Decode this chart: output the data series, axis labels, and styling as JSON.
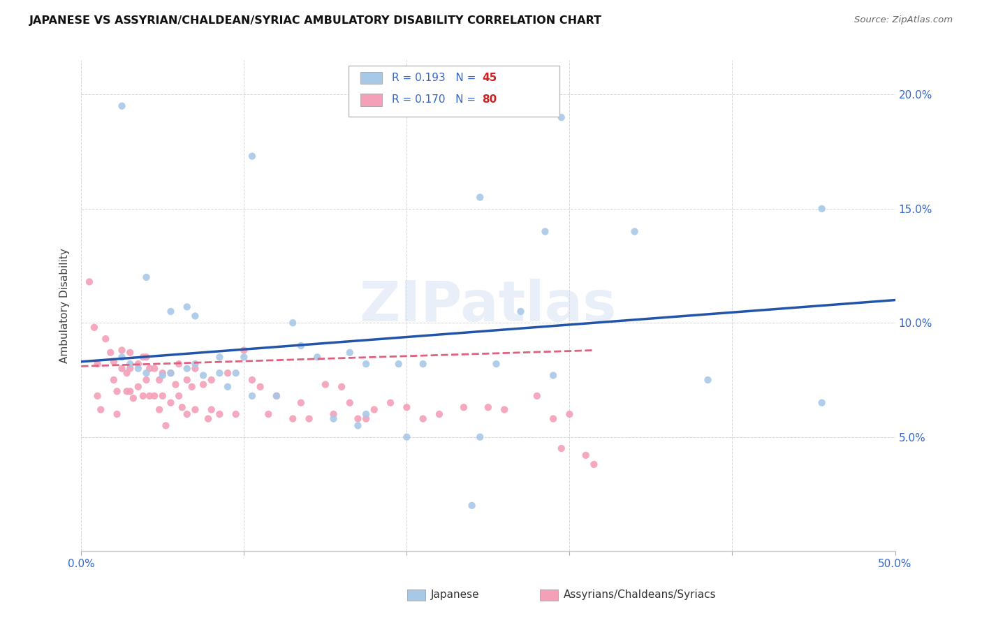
{
  "title": "JAPANESE VS ASSYRIAN/CHALDEAN/SYRIAC AMBULATORY DISABILITY CORRELATION CHART",
  "source": "Source: ZipAtlas.com",
  "ylabel": "Ambulatory Disability",
  "yticks": [
    0.0,
    0.05,
    0.1,
    0.15,
    0.2
  ],
  "ytick_labels": [
    "",
    "5.0%",
    "10.0%",
    "15.0%",
    "20.0%"
  ],
  "xlim": [
    0.0,
    0.5
  ],
  "ylim": [
    0.0,
    0.215
  ],
  "watermark": "ZIPatlas",
  "japanese_color": "#a8c8e8",
  "assyrian_color": "#f4a0b8",
  "japanese_line_color": "#2255aa",
  "assyrian_line_color": "#e06080",
  "japanese_x": [
    0.295,
    0.105,
    0.245,
    0.285,
    0.34,
    0.025,
    0.04,
    0.055,
    0.065,
    0.07,
    0.085,
    0.1,
    0.13,
    0.135,
    0.145,
    0.165,
    0.175,
    0.195,
    0.21,
    0.255,
    0.29,
    0.27,
    0.025,
    0.03,
    0.035,
    0.04,
    0.05,
    0.055,
    0.065,
    0.07,
    0.075,
    0.085,
    0.09,
    0.095,
    0.105,
    0.12,
    0.155,
    0.17,
    0.175,
    0.2,
    0.245,
    0.385,
    0.455,
    0.455,
    0.24
  ],
  "japanese_y": [
    0.19,
    0.173,
    0.155,
    0.14,
    0.14,
    0.195,
    0.12,
    0.105,
    0.107,
    0.103,
    0.085,
    0.085,
    0.1,
    0.09,
    0.085,
    0.087,
    0.082,
    0.082,
    0.082,
    0.082,
    0.077,
    0.105,
    0.085,
    0.082,
    0.08,
    0.078,
    0.077,
    0.078,
    0.08,
    0.082,
    0.077,
    0.078,
    0.072,
    0.078,
    0.068,
    0.068,
    0.058,
    0.055,
    0.06,
    0.05,
    0.05,
    0.075,
    0.15,
    0.065,
    0.02
  ],
  "assyrian_x": [
    0.005,
    0.008,
    0.01,
    0.01,
    0.012,
    0.015,
    0.018,
    0.02,
    0.02,
    0.022,
    0.022,
    0.025,
    0.025,
    0.028,
    0.028,
    0.03,
    0.03,
    0.03,
    0.032,
    0.035,
    0.035,
    0.038,
    0.038,
    0.04,
    0.04,
    0.042,
    0.042,
    0.045,
    0.045,
    0.048,
    0.048,
    0.05,
    0.05,
    0.052,
    0.055,
    0.055,
    0.058,
    0.06,
    0.06,
    0.062,
    0.065,
    0.065,
    0.068,
    0.07,
    0.07,
    0.075,
    0.078,
    0.08,
    0.08,
    0.085,
    0.09,
    0.095,
    0.1,
    0.105,
    0.11,
    0.115,
    0.12,
    0.13,
    0.135,
    0.14,
    0.15,
    0.155,
    0.16,
    0.165,
    0.17,
    0.175,
    0.18,
    0.19,
    0.2,
    0.21,
    0.22,
    0.235,
    0.25,
    0.26,
    0.28,
    0.29,
    0.295,
    0.3,
    0.31,
    0.315
  ],
  "assyrian_y": [
    0.118,
    0.098,
    0.082,
    0.068,
    0.062,
    0.093,
    0.087,
    0.083,
    0.075,
    0.07,
    0.06,
    0.088,
    0.08,
    0.078,
    0.07,
    0.087,
    0.08,
    0.07,
    0.067,
    0.082,
    0.072,
    0.085,
    0.068,
    0.085,
    0.075,
    0.08,
    0.068,
    0.08,
    0.068,
    0.075,
    0.062,
    0.078,
    0.068,
    0.055,
    0.078,
    0.065,
    0.073,
    0.082,
    0.068,
    0.063,
    0.075,
    0.06,
    0.072,
    0.08,
    0.062,
    0.073,
    0.058,
    0.075,
    0.062,
    0.06,
    0.078,
    0.06,
    0.088,
    0.075,
    0.072,
    0.06,
    0.068,
    0.058,
    0.065,
    0.058,
    0.073,
    0.06,
    0.072,
    0.065,
    0.058,
    0.058,
    0.062,
    0.065,
    0.063,
    0.058,
    0.06,
    0.063,
    0.063,
    0.062,
    0.068,
    0.058,
    0.045,
    0.06,
    0.042,
    0.038
  ],
  "japanese_line_x0": 0.0,
  "japanese_line_y0": 0.083,
  "japanese_line_x1": 0.5,
  "japanese_line_y1": 0.11,
  "assyrian_line_x0": 0.0,
  "assyrian_line_y0": 0.081,
  "assyrian_line_x1": 0.315,
  "assyrian_line_y1": 0.088
}
